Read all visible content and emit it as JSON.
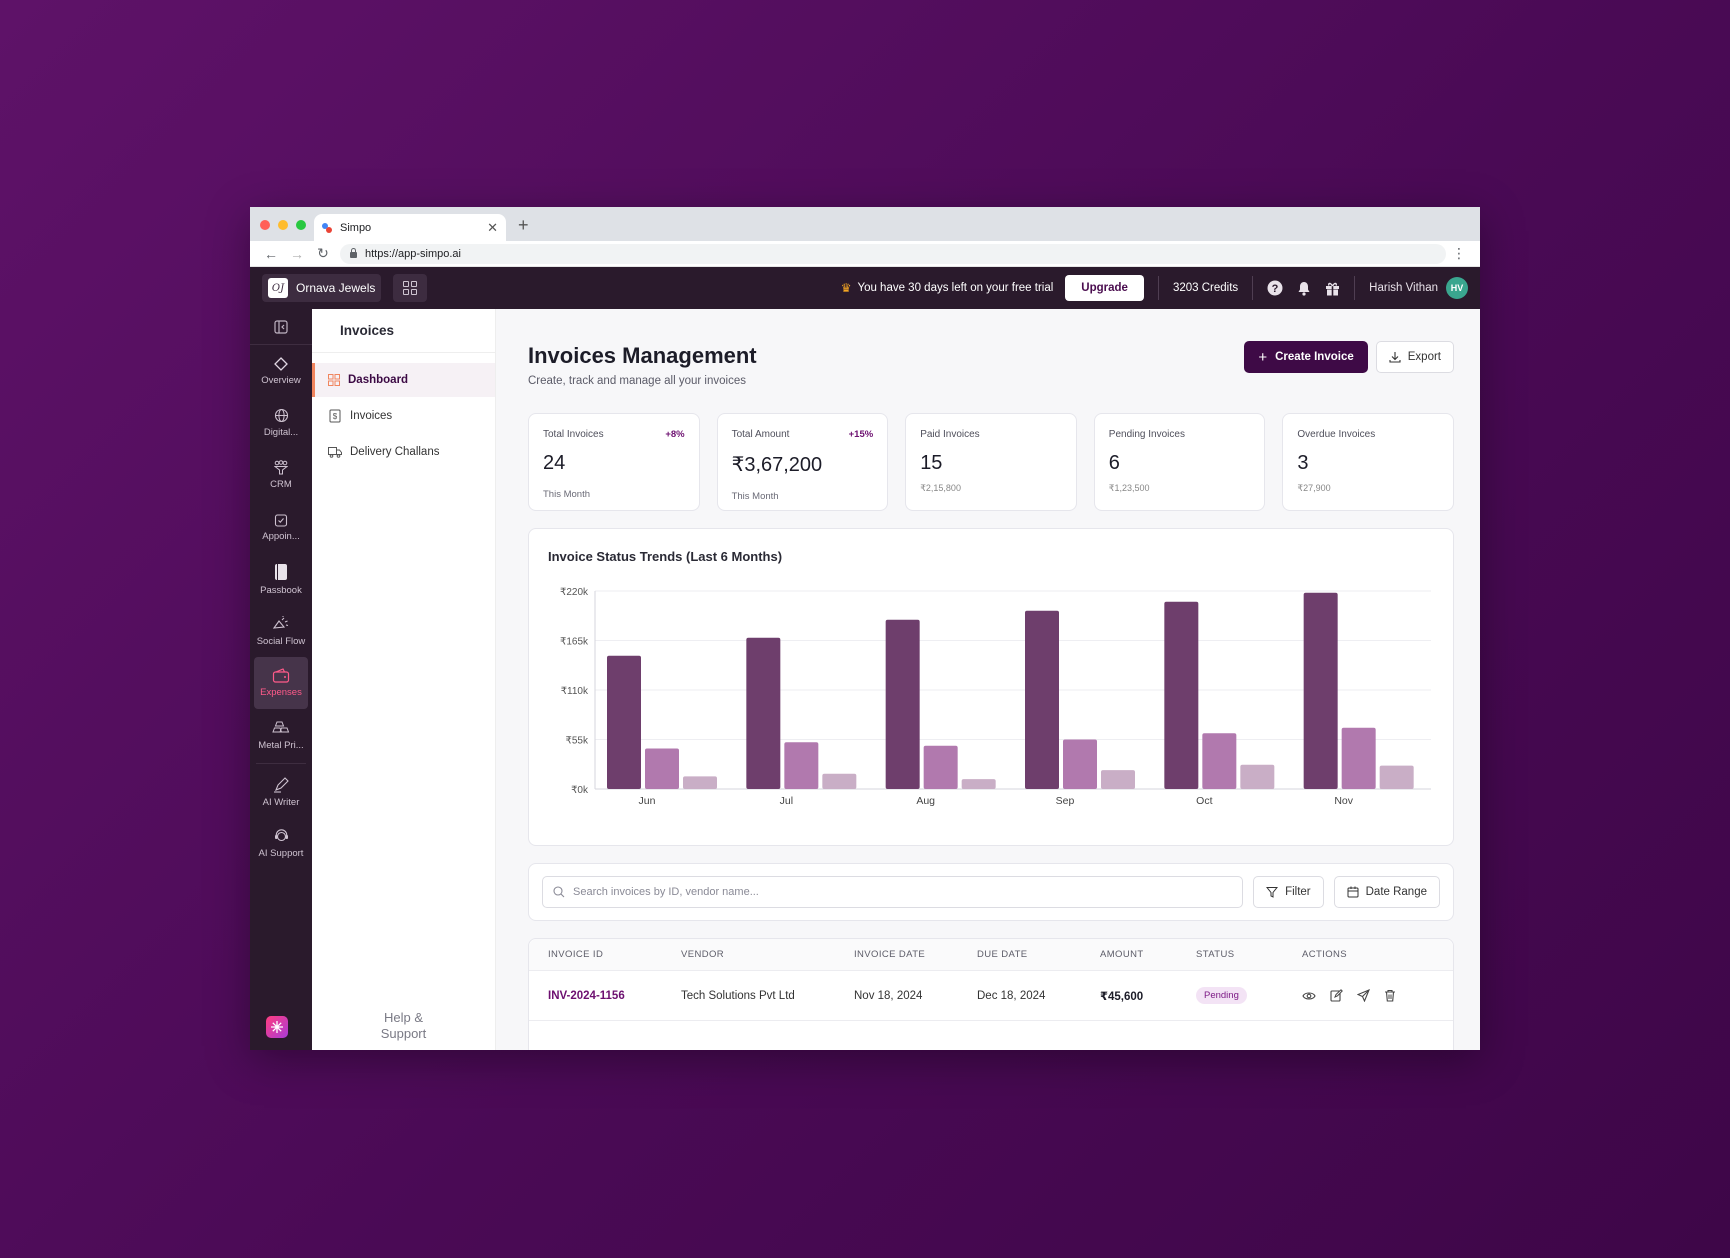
{
  "browser": {
    "tab_title": "Simpo",
    "url": "https://app-simpo.ai"
  },
  "topbar": {
    "brand_name": "Ornava Jewels",
    "brand_logo_text": "OJ",
    "trial_text": "You have 30 days left on your free trial",
    "upgrade_label": "Upgrade",
    "credits": "3203 Credits",
    "user_name": "Harish Vithan",
    "user_initials": "HV"
  },
  "rail": {
    "items": [
      {
        "label": "Overview",
        "icon": "diamond-icon"
      },
      {
        "label": "Digital...",
        "icon": "globe-icon"
      },
      {
        "label": "CRM",
        "icon": "funnel-icon"
      },
      {
        "label": "Appoin...",
        "icon": "calendar-check-icon"
      },
      {
        "label": "Passbook",
        "icon": "book-icon"
      },
      {
        "label": "Social Flow",
        "icon": "megaphone-icon"
      },
      {
        "label": "Expenses",
        "icon": "wallet-icon",
        "active": true
      },
      {
        "label": "Metal Pri...",
        "icon": "gold-bars-icon"
      },
      {
        "label": "AI Writer",
        "icon": "pen-icon"
      },
      {
        "label": "AI Support",
        "icon": "headset-icon"
      }
    ]
  },
  "subnav": {
    "title": "Invoices",
    "items": [
      {
        "label": "Dashboard",
        "icon": "dashboard-icon",
        "active": true
      },
      {
        "label": "Invoices",
        "icon": "invoice-icon"
      },
      {
        "label": "Delivery Challans",
        "icon": "truck-icon"
      }
    ],
    "help_line1": "Help &",
    "help_line2": "Support"
  },
  "main": {
    "title": "Invoices Management",
    "subtitle": "Create, track and manage all your invoices",
    "create_label": "Create Invoice",
    "export_label": "Export"
  },
  "stats": [
    {
      "label": "Total Invoices",
      "value": "24",
      "change": "+8%",
      "foot": "This Month"
    },
    {
      "label": "Total Amount",
      "value": "₹3,67,200",
      "change": "+15%",
      "foot": "This Month"
    },
    {
      "label": "Paid Invoices",
      "value": "15",
      "foot": "₹2,15,800"
    },
    {
      "label": "Pending Invoices",
      "value": "6",
      "foot": "₹1,23,500"
    },
    {
      "label": "Overdue Invoices",
      "value": "3",
      "foot": "₹27,900"
    }
  ],
  "chart_data": {
    "type": "bar",
    "title": "Invoice Status Trends (Last 6 Months)",
    "categories": [
      "Jun",
      "Jul",
      "Aug",
      "Sep",
      "Oct",
      "Nov"
    ],
    "yticks": [
      "₹0k",
      "₹55k",
      "₹110k",
      "₹165k",
      "₹220k"
    ],
    "ylim": [
      0,
      220
    ],
    "series": [
      {
        "values": [
          148,
          168,
          188,
          198,
          208,
          218
        ],
        "color": "#6e3e6c"
      },
      {
        "values": [
          45,
          52,
          48,
          55,
          62,
          68
        ],
        "color": "#b179ae"
      },
      {
        "values": [
          14,
          17,
          11,
          21,
          27,
          26
        ],
        "color": "#c9aec6"
      }
    ],
    "grid": true
  },
  "filters": {
    "search_placeholder": "Search invoices by ID, vendor name...",
    "filter_label": "Filter",
    "date_label": "Date Range"
  },
  "table": {
    "headers": [
      "INVOICE ID",
      "VENDOR",
      "INVOICE DATE",
      "DUE DATE",
      "AMOUNT",
      "STATUS",
      "ACTIONS"
    ],
    "rows": [
      {
        "id": "INV-2024-1156",
        "vendor": "Tech Solutions Pvt Ltd",
        "invoice_date": "Nov 18, 2024",
        "due_date": "Dec 18, 2024",
        "amount": "₹45,600",
        "status": "Pending"
      }
    ]
  }
}
